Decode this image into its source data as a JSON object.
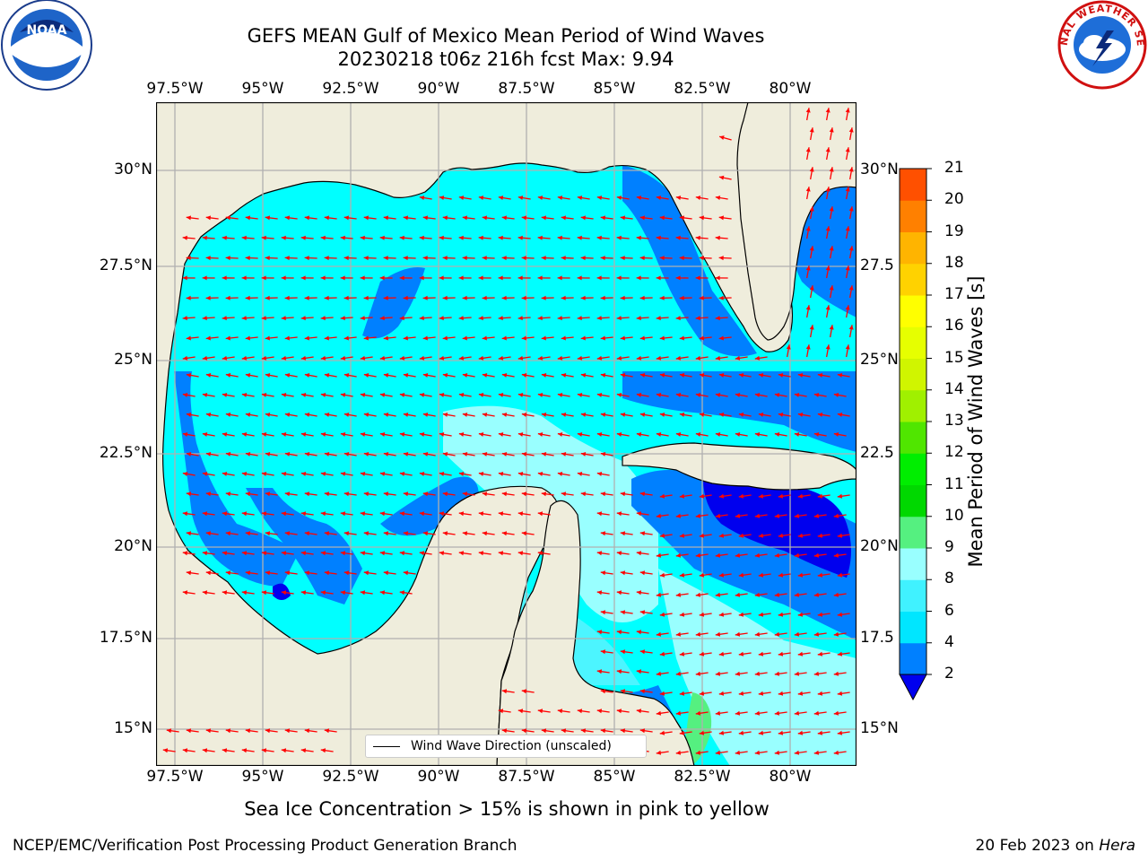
{
  "header": {
    "title_line1": "GEFS MEAN Gulf of Mexico Mean Period of Wind Waves",
    "title_line2": "20230218 t06z 216h fcst   Max: 9.94"
  },
  "axes": {
    "lon_ticks": [
      "97.5°W",
      "95°W",
      "92.5°W",
      "90°W",
      "87.5°W",
      "85°W",
      "82.5°W",
      "80°W"
    ],
    "lat_ticks_left": [
      "30°N",
      "27.5°N",
      "25°N",
      "22.5°N",
      "20°N",
      "17.5°N",
      "15°N"
    ],
    "lat_ticks_right": [
      "30°N",
      "27.5",
      "25°N",
      "22.5",
      "20°N",
      "17.5",
      "15°N"
    ]
  },
  "colorbar": {
    "title": "Mean Period of Wind Waves [s]",
    "levels": [
      "2",
      "4",
      "6",
      "8",
      "9",
      "10",
      "11",
      "12",
      "13",
      "14",
      "15",
      "16",
      "17",
      "18",
      "19",
      "20",
      "21"
    ],
    "colors": [
      "#0080ff",
      "#00e6ff",
      "#40f2ff",
      "#99ffff",
      "#55f080",
      "#00d800",
      "#00ee00",
      "#50e600",
      "#a0f000",
      "#d0f500",
      "#e6ff00",
      "#ffff00",
      "#ffd200",
      "#ffb400",
      "#ff8000",
      "#ff5000",
      "#ff1e00"
    ],
    "under_color": "#0000ee"
  },
  "map_colors": {
    "land": "#efeddc",
    "ocean_mid": "#00ffff",
    "ocean_long": "#99ffff",
    "ocean_short": "#0080ff",
    "ocean_calm": "#0000ee",
    "arrow": "#ff0000",
    "grid": "#b0b0b0"
  },
  "legend": {
    "label": "Wind Wave Direction (unscaled)"
  },
  "footer": {
    "note": "Sea Ice Concentration > 15% is shown in pink to yellow",
    "credit": "NCEP/EMC/Verification Post Processing Product Generation Branch",
    "date": "20 Feb 2023 on",
    "host": "Hera"
  },
  "logos": {
    "left": "NOAA",
    "right": "NATIONAL WEATHER SERVICE"
  }
}
